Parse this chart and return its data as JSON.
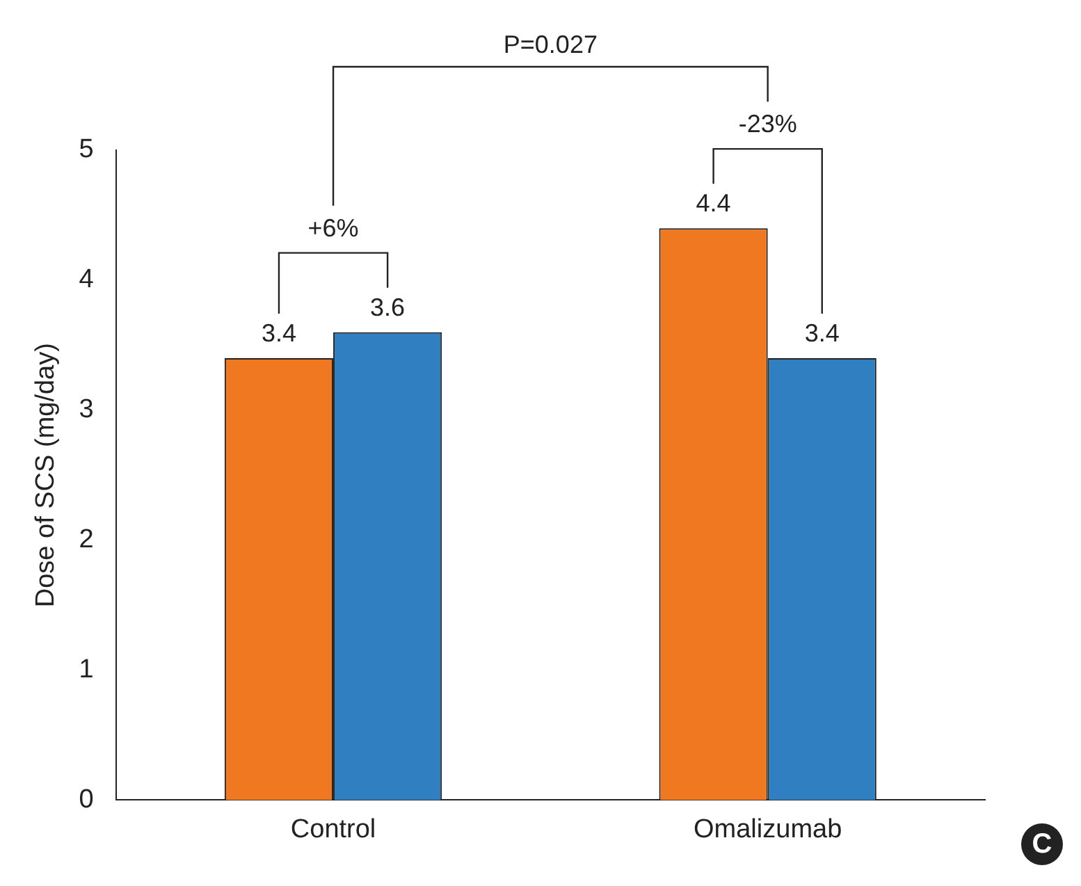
{
  "chart_data": {
    "type": "bar",
    "ylabel": "Dose of SCS (mg/day)",
    "categories": [
      "Control",
      "Omalizumab"
    ],
    "series": [
      {
        "color": "#f07820",
        "values": [
          3.4,
          4.4
        ]
      },
      {
        "color": "#2f7fc1",
        "values": [
          3.6,
          3.4
        ]
      }
    ],
    "ylim": [
      0,
      5
    ],
    "yticks": [
      0,
      1,
      2,
      3,
      4,
      5
    ],
    "grid": false,
    "legend": false,
    "data_labels": true,
    "annotations": [
      "+6%",
      "-23%",
      "P=0.027",
      "C"
    ]
  }
}
